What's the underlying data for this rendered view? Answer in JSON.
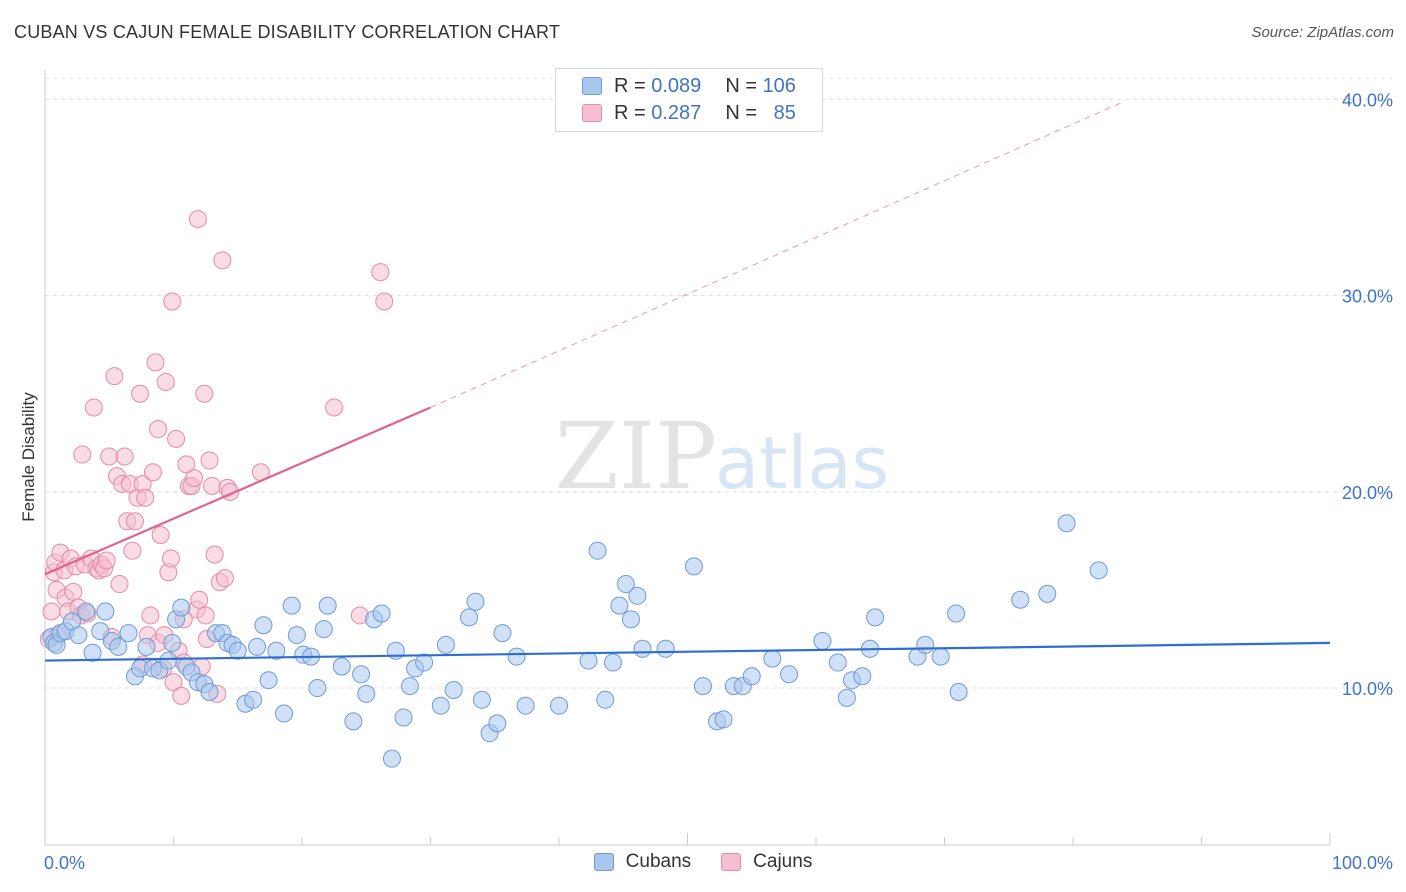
{
  "header": {
    "title": "CUBAN VS CAJUN FEMALE DISABILITY CORRELATION CHART",
    "source": "Source: ZipAtlas.com"
  },
  "watermark": {
    "zip": "ZIP",
    "atlas": "atlas"
  },
  "legend": {
    "rows": [
      {
        "r_label": "R = ",
        "r_value": "0.089",
        "n_label": "N = ",
        "n_value": "106",
        "color": "#a9c6ee",
        "border": "#6f9ad6"
      },
      {
        "r_label": "R = ",
        "r_value": "0.287",
        "n_label": "N = ",
        "n_value": "85",
        "color": "#f6bfd0",
        "border": "#e58aa8"
      }
    ]
  },
  "bottom_legend": [
    {
      "label": "Cubans",
      "color": "#a9c6ee",
      "border": "#6f9ad6"
    },
    {
      "label": "Cajuns",
      "color": "#f6bfd0",
      "border": "#e58aa8"
    }
  ],
  "chart_data": {
    "type": "scatter",
    "title": "CUBAN VS CAJUN FEMALE DISABILITY CORRELATION CHART",
    "xlabel": "",
    "ylabel": "Female Disability",
    "xlim": [
      0,
      100
    ],
    "ylim": [
      2.0,
      41.5
    ],
    "x_tick_labels": [
      "0.0%",
      "100.0%"
    ],
    "y_ticks": [
      10,
      20,
      30,
      40
    ],
    "y_tick_labels": [
      "10.0%",
      "20.0%",
      "30.0%",
      "40.0%"
    ],
    "grid": "horizontal-dashed",
    "legend_position": "top-center",
    "series": [
      {
        "name": "Cubans",
        "color": "#6f9ad6",
        "fill": "#a9c6ee",
        "trend": {
          "x": [
            0,
            100
          ],
          "y": [
            11.4,
            12.3
          ],
          "style": "solid",
          "color": "#2e6fcd"
        },
        "points": [
          [
            0.5,
            12.6
          ],
          [
            0.7,
            12.3
          ],
          [
            0.9,
            12.2
          ],
          [
            1.2,
            12.8
          ],
          [
            1.6,
            12.9
          ],
          [
            2.1,
            13.4
          ],
          [
            2.6,
            12.7
          ],
          [
            3.2,
            13.9
          ],
          [
            3.7,
            11.8
          ],
          [
            4.3,
            12.9
          ],
          [
            4.7,
            13.9
          ],
          [
            5.2,
            12.4
          ],
          [
            5.7,
            12.1
          ],
          [
            6.5,
            12.8
          ],
          [
            7.0,
            10.6
          ],
          [
            7.4,
            11.0
          ],
          [
            7.9,
            12.1
          ],
          [
            8.4,
            11.0
          ],
          [
            8.9,
            10.9
          ],
          [
            9.6,
            11.4
          ],
          [
            9.9,
            12.3
          ],
          [
            10.2,
            13.5
          ],
          [
            10.6,
            14.1
          ],
          [
            11.0,
            11.1
          ],
          [
            11.4,
            10.8
          ],
          [
            11.9,
            10.3
          ],
          [
            12.4,
            10.2
          ],
          [
            12.8,
            9.8
          ],
          [
            13.3,
            12.8
          ],
          [
            13.8,
            12.8
          ],
          [
            14.2,
            12.3
          ],
          [
            14.6,
            12.2
          ],
          [
            15.0,
            11.9
          ],
          [
            15.6,
            9.2
          ],
          [
            16.2,
            9.4
          ],
          [
            16.5,
            12.1
          ],
          [
            17.0,
            13.2
          ],
          [
            17.4,
            10.4
          ],
          [
            18.0,
            11.9
          ],
          [
            18.6,
            8.7
          ],
          [
            19.2,
            14.2
          ],
          [
            19.6,
            12.7
          ],
          [
            20.1,
            11.7
          ],
          [
            20.7,
            11.6
          ],
          [
            21.2,
            10.0
          ],
          [
            21.7,
            13.0
          ],
          [
            22.0,
            14.2
          ],
          [
            23.1,
            11.1
          ],
          [
            24.0,
            8.3
          ],
          [
            24.6,
            10.7
          ],
          [
            25.0,
            9.7
          ],
          [
            25.6,
            13.5
          ],
          [
            26.2,
            13.8
          ],
          [
            27.0,
            6.4
          ],
          [
            27.3,
            11.9
          ],
          [
            27.9,
            8.5
          ],
          [
            28.4,
            10.1
          ],
          [
            28.8,
            11.0
          ],
          [
            29.5,
            11.3
          ],
          [
            30.8,
            9.1
          ],
          [
            31.2,
            12.2
          ],
          [
            31.8,
            9.9
          ],
          [
            33.0,
            13.6
          ],
          [
            33.5,
            14.4
          ],
          [
            34.0,
            9.4
          ],
          [
            34.6,
            7.7
          ],
          [
            35.2,
            8.2
          ],
          [
            35.6,
            12.8
          ],
          [
            36.7,
            11.6
          ],
          [
            37.4,
            9.1
          ],
          [
            40.0,
            9.1
          ],
          [
            42.3,
            11.4
          ],
          [
            43.0,
            17.0
          ],
          [
            43.6,
            9.4
          ],
          [
            44.2,
            11.3
          ],
          [
            44.7,
            14.2
          ],
          [
            45.2,
            15.3
          ],
          [
            45.6,
            13.5
          ],
          [
            46.1,
            14.7
          ],
          [
            46.5,
            12.0
          ],
          [
            48.3,
            12.0
          ],
          [
            50.5,
            16.2
          ],
          [
            51.2,
            10.1
          ],
          [
            52.3,
            8.3
          ],
          [
            52.8,
            8.4
          ],
          [
            53.6,
            10.1
          ],
          [
            54.3,
            10.1
          ],
          [
            55.0,
            10.6
          ],
          [
            56.6,
            11.5
          ],
          [
            57.9,
            10.7
          ],
          [
            60.5,
            12.4
          ],
          [
            61.7,
            11.3
          ],
          [
            62.4,
            9.5
          ],
          [
            62.8,
            10.4
          ],
          [
            63.6,
            10.6
          ],
          [
            64.2,
            12.0
          ],
          [
            64.6,
            13.6
          ],
          [
            67.9,
            11.6
          ],
          [
            68.5,
            12.2
          ],
          [
            69.7,
            11.6
          ],
          [
            70.9,
            13.8
          ],
          [
            71.1,
            9.8
          ],
          [
            75.9,
            14.5
          ],
          [
            78.0,
            14.8
          ],
          [
            79.5,
            18.4
          ],
          [
            82.0,
            16.0
          ]
        ]
      },
      {
        "name": "Cajuns",
        "color": "#e58aa8",
        "fill": "#f6bfd0",
        "trend": {
          "x": [
            0,
            30
          ],
          "y": [
            15.8,
            24.3
          ],
          "style": "solid",
          "color": "#e06290",
          "extension": {
            "x": [
              30,
              84
            ],
            "y": [
              24.3,
              39.9
            ],
            "style": "dashed"
          }
        },
        "points": [
          [
            0.3,
            12.5
          ],
          [
            0.5,
            13.9
          ],
          [
            0.7,
            15.9
          ],
          [
            0.8,
            16.4
          ],
          [
            0.9,
            15.0
          ],
          [
            1.0,
            12.7
          ],
          [
            1.2,
            16.9
          ],
          [
            1.5,
            16.0
          ],
          [
            1.6,
            14.6
          ],
          [
            1.8,
            13.9
          ],
          [
            2.0,
            16.6
          ],
          [
            2.2,
            14.9
          ],
          [
            2.4,
            16.2
          ],
          [
            2.6,
            14.1
          ],
          [
            2.8,
            13.7
          ],
          [
            2.9,
            21.9
          ],
          [
            3.1,
            16.3
          ],
          [
            3.3,
            13.8
          ],
          [
            3.6,
            16.6
          ],
          [
            3.8,
            24.3
          ],
          [
            4.0,
            16.1
          ],
          [
            4.2,
            16.0
          ],
          [
            4.4,
            16.3
          ],
          [
            4.6,
            16.1
          ],
          [
            4.8,
            16.5
          ],
          [
            5.0,
            21.8
          ],
          [
            5.2,
            12.6
          ],
          [
            5.4,
            25.9
          ],
          [
            5.6,
            20.8
          ],
          [
            5.8,
            15.3
          ],
          [
            6.0,
            20.4
          ],
          [
            6.2,
            21.8
          ],
          [
            6.4,
            18.5
          ],
          [
            6.6,
            20.4
          ],
          [
            6.8,
            17.0
          ],
          [
            7.0,
            18.5
          ],
          [
            7.2,
            19.7
          ],
          [
            7.4,
            25.0
          ],
          [
            7.6,
            20.4
          ],
          [
            7.8,
            19.7
          ],
          [
            8.0,
            12.7
          ],
          [
            8.2,
            13.7
          ],
          [
            8.4,
            21.0
          ],
          [
            8.6,
            26.6
          ],
          [
            8.8,
            23.2
          ],
          [
            9.0,
            17.8
          ],
          [
            9.2,
            11.0
          ],
          [
            9.4,
            25.6
          ],
          [
            9.6,
            15.9
          ],
          [
            9.8,
            16.6
          ],
          [
            10.0,
            10.3
          ],
          [
            10.2,
            22.7
          ],
          [
            10.4,
            11.9
          ],
          [
            10.6,
            9.6
          ],
          [
            10.8,
            11.3
          ],
          [
            11.0,
            21.4
          ],
          [
            11.2,
            20.3
          ],
          [
            11.4,
            20.3
          ],
          [
            11.6,
            20.7
          ],
          [
            11.8,
            14.0
          ],
          [
            12.0,
            14.5
          ],
          [
            12.2,
            11.1
          ],
          [
            12.4,
            25.0
          ],
          [
            12.6,
            12.5
          ],
          [
            12.8,
            21.6
          ],
          [
            13.0,
            20.3
          ],
          [
            13.2,
            16.8
          ],
          [
            13.4,
            9.7
          ],
          [
            13.6,
            15.4
          ],
          [
            13.8,
            31.8
          ],
          [
            14.0,
            15.6
          ],
          [
            14.2,
            20.2
          ],
          [
            14.4,
            20.0
          ],
          [
            16.8,
            21.0
          ],
          [
            22.5,
            24.3
          ],
          [
            24.5,
            13.7
          ],
          [
            26.1,
            31.2
          ],
          [
            26.4,
            29.7
          ],
          [
            11.9,
            33.9
          ],
          [
            9.9,
            29.7
          ],
          [
            7.6,
            11.2
          ],
          [
            8.8,
            12.3
          ],
          [
            9.3,
            12.7
          ],
          [
            10.8,
            13.5
          ],
          [
            12.5,
            13.7
          ]
        ]
      }
    ]
  }
}
